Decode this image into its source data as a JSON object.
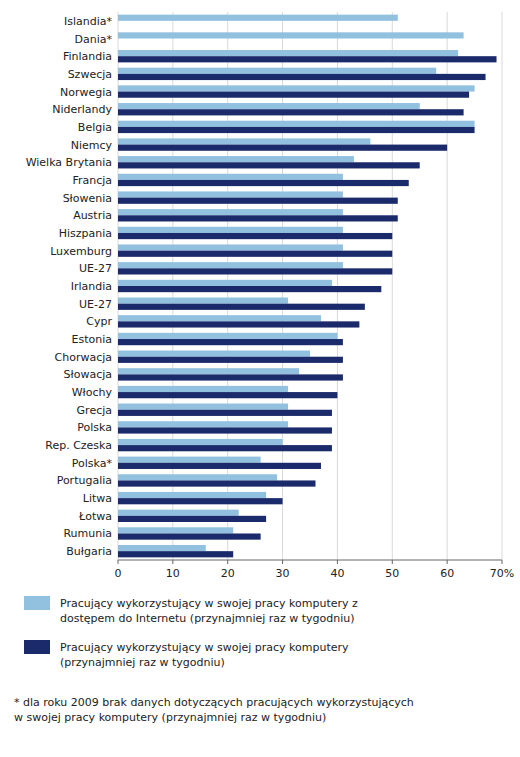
{
  "chart_data": {
    "type": "bar",
    "orientation": "horizontal",
    "grid": true,
    "categories": [
      "Islandia*",
      "Dania*",
      "Finlandia",
      "Szwecja",
      "Norwegia",
      "Niderlandy",
      "Belgia",
      "Niemcy",
      "Wielka Brytania",
      "Francja",
      "Słowenia",
      "Austria",
      "Hiszpania",
      "Luxemburg",
      "UE-27",
      "Irlandia",
      "UE-27",
      "Cypr",
      "Estonia",
      "Chorwacja",
      "Słowacja",
      "Włochy",
      "Grecja",
      "Polska",
      "Rep. Czeska",
      "Polska*",
      "Portugalia",
      "Litwa",
      "Łotwa",
      "Rumunia",
      "Bułgaria"
    ],
    "series": [
      {
        "name": "Pracujący wykorzystujący w swojej pracy komputery z\ndostępem do Internetu (przynajmniej raz w tygodniu)",
        "color": "#92c0df",
        "values": [
          51,
          63,
          62,
          58,
          65,
          55,
          65,
          46,
          43,
          41,
          41,
          41,
          41,
          41,
          41,
          39,
          31,
          37,
          40,
          35,
          33,
          31,
          31,
          31,
          30,
          26,
          29,
          27,
          22,
          21,
          16
        ]
      },
      {
        "name": "Pracujący wykorzystujący w swojej pracy komputery\n(przynajmniej raz w tygodniu)",
        "color": "#1b2a6b",
        "values": [
          null,
          null,
          69,
          67,
          64,
          63,
          65,
          60,
          55,
          53,
          51,
          51,
          50,
          50,
          50,
          48,
          45,
          44,
          41,
          41,
          41,
          40,
          39,
          39,
          39,
          37,
          36,
          30,
          27,
          26,
          21
        ]
      }
    ],
    "xlim": [
      0,
      70
    ],
    "xticks": [
      0,
      10,
      20,
      30,
      40,
      50,
      60,
      {
        "value": 70,
        "label": "70%"
      }
    ],
    "annotations": [
      "* dla roku 2009 brak danych dotyczących pracujących wykorzystujących\nw swojej pracy komputery (przynajmniej raz w tygodniu)"
    ]
  }
}
